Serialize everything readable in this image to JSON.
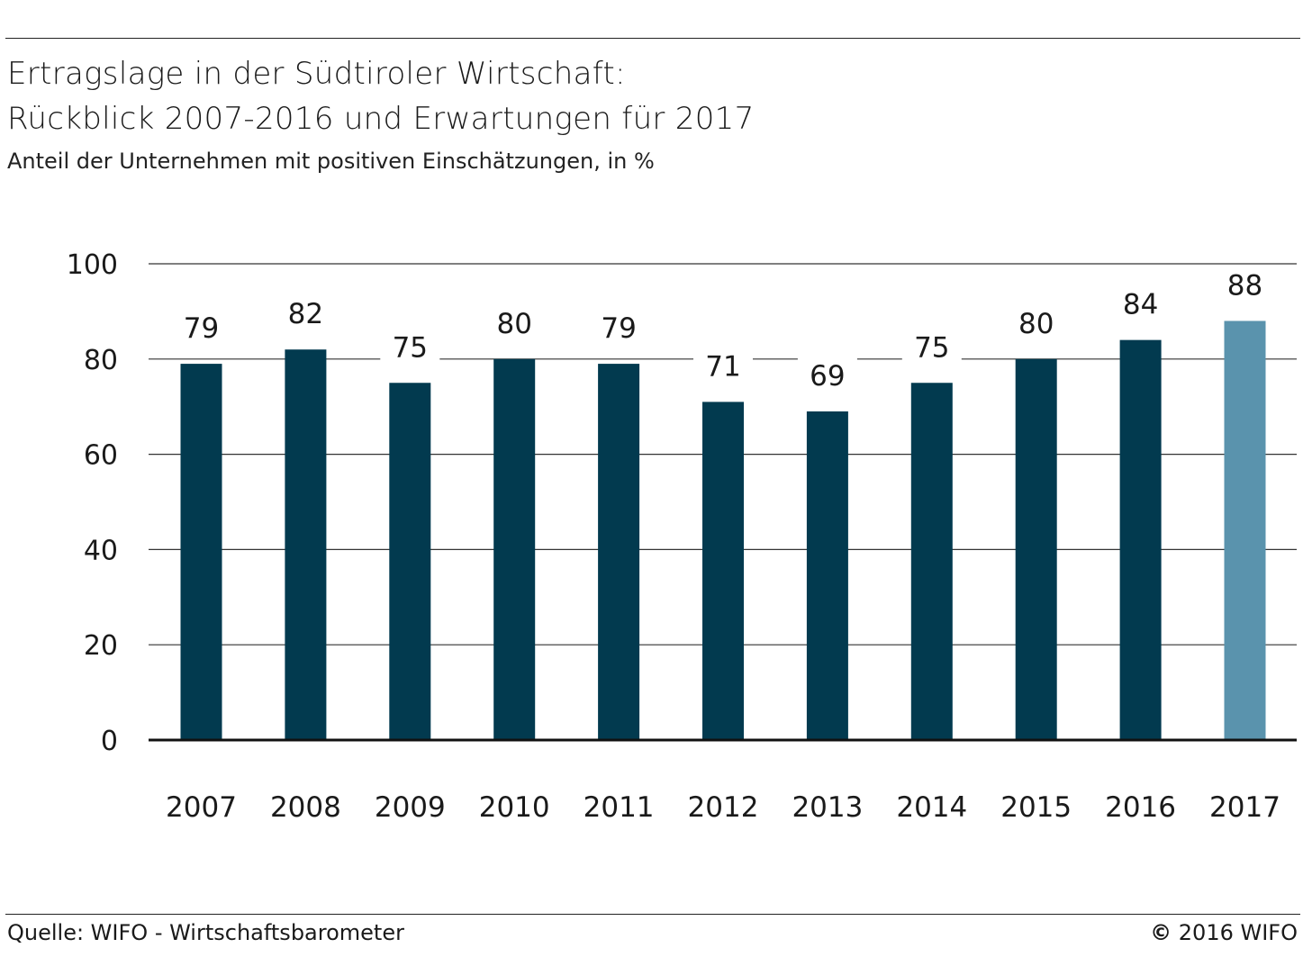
{
  "header": {
    "title_line1": "Ertragslage in der Südtiroler Wirtschaft:",
    "title_line2": "Rückblick 2007-2016 und Erwartungen für 2017",
    "subtitle": "Anteil der Unternehmen mit positiven Einschätzungen, in %"
  },
  "footer": {
    "source": "Quelle: WIFO - Wirtschaftsbarometer",
    "copyright_symbol": "©",
    "copyright_text": " 2016 WIFO"
  },
  "colors": {
    "bar": "#023a4f",
    "bar_highlight": "#5a93ad",
    "grid": "#333333",
    "text": "#1a1a1a"
  },
  "chart_data": {
    "type": "bar",
    "title": "Ertragslage in der Südtiroler Wirtschaft: Rückblick 2007-2016 und Erwartungen für 2017",
    "subtitle": "Anteil der Unternehmen mit positiven Einschätzungen, in %",
    "xlabel": "",
    "ylabel": "",
    "categories": [
      "2007",
      "2008",
      "2009",
      "2010",
      "2011",
      "2012",
      "2013",
      "2014",
      "2015",
      "2016",
      "2017"
    ],
    "values": [
      79,
      82,
      75,
      80,
      79,
      71,
      69,
      75,
      80,
      84,
      88
    ],
    "highlighted_categories": [
      "2017"
    ],
    "ylim": [
      0,
      100
    ],
    "yticks": [
      0,
      20,
      40,
      60,
      80,
      100
    ],
    "grid": true,
    "legend": "none",
    "data_labels": true
  }
}
